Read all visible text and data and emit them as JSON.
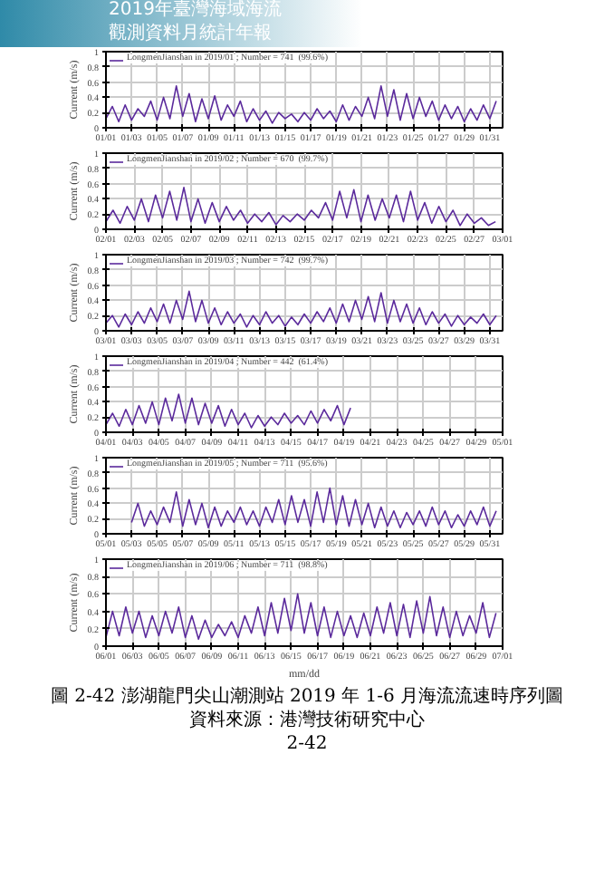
{
  "chart_data": [
    {
      "type": "line",
      "annotations": [
        "2019年臺灣海域海流",
        "觀測資料月統計年報"
      ],
      "ylabel": "Current (m/s)",
      "legend": "top left",
      "grid": true,
      "xlim": [
        "2019-01-01",
        "2019-02-01"
      ],
      "ylim": [
        0,
        1
      ],
      "yticks": [
        0,
        0.2,
        0.4,
        0.6,
        0.8,
        1
      ],
      "xticks": [
        {
          "value": "2019-01-01",
          "label": "01/01"
        },
        {
          "value": "2019-01-03",
          "label": "01/03"
        },
        {
          "value": "2019-01-05",
          "label": "01/05"
        },
        {
          "value": "2019-01-07",
          "label": "01/07"
        },
        {
          "value": "2019-01-09",
          "label": "01/09"
        },
        {
          "value": "2019-01-11",
          "label": "01/11"
        },
        {
          "value": "2019-01-13",
          "label": "01/13"
        },
        {
          "value": "2019-01-15",
          "label": "01/15"
        },
        {
          "value": "2019-01-17",
          "label": "01/17"
        },
        {
          "value": "2019-01-19",
          "label": "01/19"
        },
        {
          "value": "2019-01-21",
          "label": "01/21"
        },
        {
          "value": "2019-01-23",
          "label": "01/23"
        },
        {
          "value": "2019-01-25",
          "label": "01/25"
        },
        {
          "value": "2019-01-27",
          "label": "01/27"
        },
        {
          "value": "2019-01-29",
          "label": "01/29"
        },
        {
          "value": "2019-01-31",
          "label": "01/31"
        }
      ],
      "series": [
        {
          "name": "LongmenJianshan in 2019/01 ; Number = 741  (99.6%)",
          "color": "#5b2a9c",
          "x": [
            "2019-01-01T00:00",
            "2019-01-01T12:00",
            "2019-01-02T00:00",
            "2019-01-02T12:00",
            "2019-01-03T00:00",
            "2019-01-03T12:00",
            "2019-01-04T00:00",
            "2019-01-04T12:00",
            "2019-01-05T00:00",
            "2019-01-05T12:00",
            "2019-01-06T00:00",
            "2019-01-06T12:00",
            "2019-01-07T00:00",
            "2019-01-07T12:00",
            "2019-01-08T00:00",
            "2019-01-08T12:00",
            "2019-01-09T00:00",
            "2019-01-09T12:00",
            "2019-01-10T00:00",
            "2019-01-10T12:00",
            "2019-01-11T00:00",
            "2019-01-11T12:00",
            "2019-01-12T00:00",
            "2019-01-12T12:00",
            "2019-01-13T00:00",
            "2019-01-13T12:00",
            "2019-01-14T00:00",
            "2019-01-14T12:00",
            "2019-01-15T00:00",
            "2019-01-15T12:00",
            "2019-01-16T00:00",
            "2019-01-16T12:00",
            "2019-01-17T00:00",
            "2019-01-17T12:00",
            "2019-01-18T00:00",
            "2019-01-18T12:00",
            "2019-01-19T00:00",
            "2019-01-19T12:00",
            "2019-01-20T00:00",
            "2019-01-20T12:00",
            "2019-01-21T00:00",
            "2019-01-21T12:00",
            "2019-01-22T00:00",
            "2019-01-22T12:00",
            "2019-01-23T00:00",
            "2019-01-23T12:00",
            "2019-01-24T00:00",
            "2019-01-24T12:00",
            "2019-01-25T00:00",
            "2019-01-25T12:00",
            "2019-01-26T00:00",
            "2019-01-26T12:00",
            "2019-01-27T00:00",
            "2019-01-27T12:00",
            "2019-01-28T00:00",
            "2019-01-28T12:00",
            "2019-01-29T00:00",
            "2019-01-29T12:00",
            "2019-01-30T00:00",
            "2019-01-30T12:00",
            "2019-01-31T00:00",
            "2019-01-31T12:00"
          ],
          "values": [
            0.12,
            0.28,
            0.08,
            0.3,
            0.1,
            0.25,
            0.15,
            0.35,
            0.1,
            0.4,
            0.12,
            0.55,
            0.15,
            0.45,
            0.08,
            0.38,
            0.12,
            0.42,
            0.1,
            0.3,
            0.15,
            0.35,
            0.08,
            0.25,
            0.1,
            0.22,
            0.06,
            0.2,
            0.12,
            0.18,
            0.08,
            0.2,
            0.1,
            0.25,
            0.12,
            0.22,
            0.08,
            0.3,
            0.1,
            0.28,
            0.15,
            0.4,
            0.12,
            0.55,
            0.15,
            0.5,
            0.1,
            0.45,
            0.12,
            0.4,
            0.15,
            0.35,
            0.1,
            0.3,
            0.12,
            0.28,
            0.08,
            0.25,
            0.1,
            0.3,
            0.12,
            0.35
          ]
        }
      ]
    },
    {
      "type": "line",
      "ylabel": "Current (m/s)",
      "legend": "top left",
      "grid": true,
      "xlim": [
        "2019-02-01",
        "2019-03-01"
      ],
      "ylim": [
        0,
        1
      ],
      "yticks": [
        0,
        0.2,
        0.4,
        0.6,
        0.8,
        1
      ],
      "xticks": [
        {
          "value": "2019-02-01",
          "label": "02/01"
        },
        {
          "value": "2019-02-03",
          "label": "02/03"
        },
        {
          "value": "2019-02-05",
          "label": "02/05"
        },
        {
          "value": "2019-02-07",
          "label": "02/07"
        },
        {
          "value": "2019-02-09",
          "label": "02/09"
        },
        {
          "value": "2019-02-11",
          "label": "02/11"
        },
        {
          "value": "2019-02-13",
          "label": "02/13"
        },
        {
          "value": "2019-02-15",
          "label": "02/15"
        },
        {
          "value": "2019-02-17",
          "label": "02/17"
        },
        {
          "value": "2019-02-19",
          "label": "02/19"
        },
        {
          "value": "2019-02-21",
          "label": "02/21"
        },
        {
          "value": "2019-02-23",
          "label": "02/23"
        },
        {
          "value": "2019-02-25",
          "label": "02/25"
        },
        {
          "value": "2019-02-27",
          "label": "02/27"
        },
        {
          "value": "2019-03-01",
          "label": "03/01"
        }
      ],
      "series": [
        {
          "name": "LongmenJianshan in 2019/02 ; Number = 670  (99.7%)",
          "color": "#5b2a9c",
          "x": [
            "2019-02-01T00:00",
            "2019-02-01T12:00",
            "2019-02-02T00:00",
            "2019-02-02T12:00",
            "2019-02-03T00:00",
            "2019-02-03T12:00",
            "2019-02-04T00:00",
            "2019-02-04T12:00",
            "2019-02-05T00:00",
            "2019-02-05T12:00",
            "2019-02-06T00:00",
            "2019-02-06T12:00",
            "2019-02-07T00:00",
            "2019-02-07T12:00",
            "2019-02-08T00:00",
            "2019-02-08T12:00",
            "2019-02-09T00:00",
            "2019-02-09T12:00",
            "2019-02-10T00:00",
            "2019-02-10T12:00",
            "2019-02-11T00:00",
            "2019-02-11T12:00",
            "2019-02-12T00:00",
            "2019-02-12T12:00",
            "2019-02-13T00:00",
            "2019-02-13T12:00",
            "2019-02-14T00:00",
            "2019-02-14T12:00",
            "2019-02-15T00:00",
            "2019-02-15T12:00",
            "2019-02-16T00:00",
            "2019-02-16T12:00",
            "2019-02-17T00:00",
            "2019-02-17T12:00",
            "2019-02-18T00:00",
            "2019-02-18T12:00",
            "2019-02-19T00:00",
            "2019-02-19T12:00",
            "2019-02-20T00:00",
            "2019-02-20T12:00",
            "2019-02-21T00:00",
            "2019-02-21T12:00",
            "2019-02-22T00:00",
            "2019-02-22T12:00",
            "2019-02-23T00:00",
            "2019-02-23T12:00",
            "2019-02-24T00:00",
            "2019-02-24T12:00",
            "2019-02-25T00:00",
            "2019-02-25T12:00",
            "2019-02-26T00:00",
            "2019-02-26T12:00",
            "2019-02-27T00:00",
            "2019-02-27T12:00",
            "2019-02-28T00:00",
            "2019-02-28T12:00"
          ],
          "values": [
            0.1,
            0.25,
            0.08,
            0.3,
            0.12,
            0.4,
            0.1,
            0.45,
            0.15,
            0.5,
            0.12,
            0.55,
            0.1,
            0.4,
            0.08,
            0.35,
            0.1,
            0.3,
            0.12,
            0.25,
            0.08,
            0.2,
            0.1,
            0.22,
            0.06,
            0.18,
            0.1,
            0.2,
            0.12,
            0.25,
            0.15,
            0.35,
            0.12,
            0.5,
            0.15,
            0.52,
            0.1,
            0.45,
            0.12,
            0.4,
            0.15,
            0.45,
            0.1,
            0.5,
            0.12,
            0.35,
            0.08,
            0.3,
            0.1,
            0.25,
            0.05,
            0.2,
            0.08,
            0.15,
            0.05,
            0.1
          ]
        }
      ]
    },
    {
      "type": "line",
      "ylabel": "Current (m/s)",
      "legend": "top left",
      "grid": true,
      "xlim": [
        "2019-03-01",
        "2019-04-01"
      ],
      "ylim": [
        0,
        1
      ],
      "yticks": [
        0,
        0.2,
        0.4,
        0.6,
        0.8,
        1
      ],
      "xticks": [
        {
          "value": "2019-03-01",
          "label": "03/01"
        },
        {
          "value": "2019-03-03",
          "label": "03/03"
        },
        {
          "value": "2019-03-05",
          "label": "03/05"
        },
        {
          "value": "2019-03-07",
          "label": "03/07"
        },
        {
          "value": "2019-03-09",
          "label": "03/09"
        },
        {
          "value": "2019-03-11",
          "label": "03/11"
        },
        {
          "value": "2019-03-13",
          "label": "03/13"
        },
        {
          "value": "2019-03-15",
          "label": "03/15"
        },
        {
          "value": "2019-03-17",
          "label": "03/17"
        },
        {
          "value": "2019-03-19",
          "label": "03/19"
        },
        {
          "value": "2019-03-21",
          "label": "03/21"
        },
        {
          "value": "2019-03-23",
          "label": "03/23"
        },
        {
          "value": "2019-03-25",
          "label": "03/25"
        },
        {
          "value": "2019-03-27",
          "label": "03/27"
        },
        {
          "value": "2019-03-29",
          "label": "03/29"
        },
        {
          "value": "2019-03-31",
          "label": "03/31"
        }
      ],
      "series": [
        {
          "name": "LongmenJianshan in 2019/03 ; Number = 742  (99.7%)",
          "color": "#5b2a9c",
          "x": [
            "2019-03-01T00:00",
            "2019-03-01T12:00",
            "2019-03-02T00:00",
            "2019-03-02T12:00",
            "2019-03-03T00:00",
            "2019-03-03T12:00",
            "2019-03-04T00:00",
            "2019-03-04T12:00",
            "2019-03-05T00:00",
            "2019-03-05T12:00",
            "2019-03-06T00:00",
            "2019-03-06T12:00",
            "2019-03-07T00:00",
            "2019-03-07T12:00",
            "2019-03-08T00:00",
            "2019-03-08T12:00",
            "2019-03-09T00:00",
            "2019-03-09T12:00",
            "2019-03-10T00:00",
            "2019-03-10T12:00",
            "2019-03-11T00:00",
            "2019-03-11T12:00",
            "2019-03-12T00:00",
            "2019-03-12T12:00",
            "2019-03-13T00:00",
            "2019-03-13T12:00",
            "2019-03-14T00:00",
            "2019-03-14T12:00",
            "2019-03-15T00:00",
            "2019-03-15T12:00",
            "2019-03-16T00:00",
            "2019-03-16T12:00",
            "2019-03-17T00:00",
            "2019-03-17T12:00",
            "2019-03-18T00:00",
            "2019-03-18T12:00",
            "2019-03-19T00:00",
            "2019-03-19T12:00",
            "2019-03-20T00:00",
            "2019-03-20T12:00",
            "2019-03-21T00:00",
            "2019-03-21T12:00",
            "2019-03-22T00:00",
            "2019-03-22T12:00",
            "2019-03-23T00:00",
            "2019-03-23T12:00",
            "2019-03-24T00:00",
            "2019-03-24T12:00",
            "2019-03-25T00:00",
            "2019-03-25T12:00",
            "2019-03-26T00:00",
            "2019-03-26T12:00",
            "2019-03-27T00:00",
            "2019-03-27T12:00",
            "2019-03-28T00:00",
            "2019-03-28T12:00",
            "2019-03-29T00:00",
            "2019-03-29T12:00",
            "2019-03-30T00:00",
            "2019-03-30T12:00",
            "2019-03-31T00:00",
            "2019-03-31T12:00"
          ],
          "values": [
            0.1,
            0.2,
            0.05,
            0.22,
            0.08,
            0.25,
            0.1,
            0.3,
            0.12,
            0.35,
            0.1,
            0.4,
            0.15,
            0.52,
            0.12,
            0.4,
            0.1,
            0.3,
            0.08,
            0.25,
            0.1,
            0.22,
            0.05,
            0.2,
            0.08,
            0.25,
            0.1,
            0.2,
            0.06,
            0.18,
            0.08,
            0.22,
            0.1,
            0.25,
            0.12,
            0.3,
            0.1,
            0.35,
            0.12,
            0.4,
            0.15,
            0.45,
            0.12,
            0.5,
            0.1,
            0.4,
            0.12,
            0.35,
            0.1,
            0.3,
            0.08,
            0.25,
            0.1,
            0.22,
            0.06,
            0.2,
            0.08,
            0.18,
            0.1,
            0.22,
            0.08,
            0.2
          ]
        }
      ]
    },
    {
      "type": "line",
      "ylabel": "Current (m/s)",
      "legend": "top left",
      "grid": true,
      "xlim": [
        "2019-04-01",
        "2019-05-01"
      ],
      "ylim": [
        0,
        1
      ],
      "yticks": [
        0,
        0.2,
        0.4,
        0.6,
        0.8,
        1
      ],
      "xticks": [
        {
          "value": "2019-04-01",
          "label": "04/01"
        },
        {
          "value": "2019-04-03",
          "label": "04/03"
        },
        {
          "value": "2019-04-05",
          "label": "04/05"
        },
        {
          "value": "2019-04-07",
          "label": "04/07"
        },
        {
          "value": "2019-04-09",
          "label": "04/09"
        },
        {
          "value": "2019-04-11",
          "label": "04/11"
        },
        {
          "value": "2019-04-13",
          "label": "04/13"
        },
        {
          "value": "2019-04-15",
          "label": "04/15"
        },
        {
          "value": "2019-04-17",
          "label": "04/17"
        },
        {
          "value": "2019-04-19",
          "label": "04/19"
        },
        {
          "value": "2019-04-21",
          "label": "04/21"
        },
        {
          "value": "2019-04-23",
          "label": "04/23"
        },
        {
          "value": "2019-04-25",
          "label": "04/25"
        },
        {
          "value": "2019-04-27",
          "label": "04/27"
        },
        {
          "value": "2019-04-29",
          "label": "04/29"
        },
        {
          "value": "2019-05-01",
          "label": "05/01"
        }
      ],
      "series": [
        {
          "name": "LongmenJianshan in 2019/04 ; Number = 442  (61.4%)",
          "color": "#5b2a9c",
          "x": [
            "2019-04-01T00:00",
            "2019-04-01T12:00",
            "2019-04-02T00:00",
            "2019-04-02T12:00",
            "2019-04-03T00:00",
            "2019-04-03T12:00",
            "2019-04-04T00:00",
            "2019-04-04T12:00",
            "2019-04-05T00:00",
            "2019-04-05T12:00",
            "2019-04-06T00:00",
            "2019-04-06T12:00",
            "2019-04-07T00:00",
            "2019-04-07T12:00",
            "2019-04-08T00:00",
            "2019-04-08T12:00",
            "2019-04-09T00:00",
            "2019-04-09T12:00",
            "2019-04-10T00:00",
            "2019-04-10T12:00",
            "2019-04-11T00:00",
            "2019-04-11T12:00",
            "2019-04-12T00:00",
            "2019-04-12T12:00",
            "2019-04-13T00:00",
            "2019-04-13T12:00",
            "2019-04-14T00:00",
            "2019-04-14T12:00",
            "2019-04-15T00:00",
            "2019-04-15T12:00",
            "2019-04-16T00:00",
            "2019-04-16T12:00",
            "2019-04-17T00:00",
            "2019-04-17T12:00",
            "2019-04-18T00:00",
            "2019-04-18T12:00",
            "2019-04-19T00:00",
            "2019-04-19T12:00"
          ],
          "values": [
            0.1,
            0.25,
            0.08,
            0.3,
            0.1,
            0.35,
            0.12,
            0.4,
            0.1,
            0.45,
            0.15,
            0.5,
            0.12,
            0.45,
            0.1,
            0.38,
            0.12,
            0.35,
            0.08,
            0.3,
            0.1,
            0.25,
            0.06,
            0.22,
            0.08,
            0.2,
            0.1,
            0.25,
            0.12,
            0.22,
            0.1,
            0.28,
            0.12,
            0.3,
            0.15,
            0.35,
            0.1,
            0.32
          ]
        }
      ]
    },
    {
      "type": "line",
      "ylabel": "Current (m/s)",
      "legend": "top left",
      "grid": true,
      "xlim": [
        "2019-05-01",
        "2019-06-01"
      ],
      "ylim": [
        0,
        1
      ],
      "yticks": [
        0,
        0.2,
        0.4,
        0.6,
        0.8,
        1
      ],
      "xticks": [
        {
          "value": "2019-05-01",
          "label": "05/01"
        },
        {
          "value": "2019-05-03",
          "label": "05/03"
        },
        {
          "value": "2019-05-05",
          "label": "05/05"
        },
        {
          "value": "2019-05-07",
          "label": "05/07"
        },
        {
          "value": "2019-05-09",
          "label": "05/09"
        },
        {
          "value": "2019-05-11",
          "label": "05/11"
        },
        {
          "value": "2019-05-13",
          "label": "05/13"
        },
        {
          "value": "2019-05-15",
          "label": "05/15"
        },
        {
          "value": "2019-05-17",
          "label": "05/17"
        },
        {
          "value": "2019-05-19",
          "label": "05/19"
        },
        {
          "value": "2019-05-21",
          "label": "05/21"
        },
        {
          "value": "2019-05-23",
          "label": "05/23"
        },
        {
          "value": "2019-05-25",
          "label": "05/25"
        },
        {
          "value": "2019-05-27",
          "label": "05/27"
        },
        {
          "value": "2019-05-29",
          "label": "05/29"
        },
        {
          "value": "2019-05-31",
          "label": "05/31"
        }
      ],
      "series": [
        {
          "name": "LongmenJianshan in 2019/05 ; Number = 711  (95.6%)",
          "color": "#5b2a9c",
          "x": [
            "2019-05-03T00:00",
            "2019-05-03T12:00",
            "2019-05-04T00:00",
            "2019-05-04T12:00",
            "2019-05-05T00:00",
            "2019-05-05T12:00",
            "2019-05-06T00:00",
            "2019-05-06T12:00",
            "2019-05-07T00:00",
            "2019-05-07T12:00",
            "2019-05-08T00:00",
            "2019-05-08T12:00",
            "2019-05-09T00:00",
            "2019-05-09T12:00",
            "2019-05-10T00:00",
            "2019-05-10T12:00",
            "2019-05-11T00:00",
            "2019-05-11T12:00",
            "2019-05-12T00:00",
            "2019-05-12T12:00",
            "2019-05-13T00:00",
            "2019-05-13T12:00",
            "2019-05-14T00:00",
            "2019-05-14T12:00",
            "2019-05-15T00:00",
            "2019-05-15T12:00",
            "2019-05-16T00:00",
            "2019-05-16T12:00",
            "2019-05-17T00:00",
            "2019-05-17T12:00",
            "2019-05-18T00:00",
            "2019-05-18T12:00",
            "2019-05-19T00:00",
            "2019-05-19T12:00",
            "2019-05-20T00:00",
            "2019-05-20T12:00",
            "2019-05-21T00:00",
            "2019-05-21T12:00",
            "2019-05-22T00:00",
            "2019-05-22T12:00",
            "2019-05-23T00:00",
            "2019-05-23T12:00",
            "2019-05-24T00:00",
            "2019-05-24T12:00",
            "2019-05-25T00:00",
            "2019-05-25T12:00",
            "2019-05-26T00:00",
            "2019-05-26T12:00",
            "2019-05-27T00:00",
            "2019-05-27T12:00",
            "2019-05-28T00:00",
            "2019-05-28T12:00",
            "2019-05-29T00:00",
            "2019-05-29T12:00",
            "2019-05-30T00:00",
            "2019-05-30T12:00",
            "2019-05-31T00:00",
            "2019-05-31T12:00"
          ],
          "values": [
            0.15,
            0.4,
            0.1,
            0.3,
            0.12,
            0.35,
            0.15,
            0.55,
            0.1,
            0.45,
            0.12,
            0.4,
            0.08,
            0.35,
            0.1,
            0.3,
            0.15,
            0.35,
            0.12,
            0.3,
            0.1,
            0.35,
            0.15,
            0.45,
            0.12,
            0.5,
            0.15,
            0.45,
            0.1,
            0.55,
            0.15,
            0.6,
            0.12,
            0.5,
            0.1,
            0.45,
            0.12,
            0.4,
            0.08,
            0.35,
            0.1,
            0.3,
            0.08,
            0.28,
            0.12,
            0.3,
            0.1,
            0.35,
            0.12,
            0.3,
            0.08,
            0.25,
            0.1,
            0.3,
            0.12,
            0.35,
            0.1,
            0.3
          ]
        }
      ]
    },
    {
      "type": "line",
      "ylabel": "Current (m/s)",
      "xlabel": "mm/dd",
      "legend": "top left",
      "grid": true,
      "xlim": [
        "2019-06-01",
        "2019-07-01"
      ],
      "ylim": [
        0,
        1
      ],
      "yticks": [
        0,
        0.2,
        0.4,
        0.6,
        0.8,
        1
      ],
      "annotations": [
        "圖 2-42 澎湖龍門尖山潮測站 2019 年 1-6 月海流流速時序列圖",
        "資料來源：港灣技術研究中心",
        "2-42"
      ],
      "xticks": [
        {
          "value": "2019-06-01",
          "label": "06/01"
        },
        {
          "value": "2019-06-03",
          "label": "06/03"
        },
        {
          "value": "2019-06-05",
          "label": "06/05"
        },
        {
          "value": "2019-06-07",
          "label": "06/07"
        },
        {
          "value": "2019-06-09",
          "label": "06/09"
        },
        {
          "value": "2019-06-11",
          "label": "06/11"
        },
        {
          "value": "2019-06-13",
          "label": "06/13"
        },
        {
          "value": "2019-06-15",
          "label": "06/15"
        },
        {
          "value": "2019-06-17",
          "label": "06/17"
        },
        {
          "value": "2019-06-19",
          "label": "06/19"
        },
        {
          "value": "2019-06-21",
          "label": "06/21"
        },
        {
          "value": "2019-06-23",
          "label": "06/23"
        },
        {
          "value": "2019-06-25",
          "label": "06/25"
        },
        {
          "value": "2019-06-27",
          "label": "06/27"
        },
        {
          "value": "2019-06-29",
          "label": "06/29"
        },
        {
          "value": "2019-07-01",
          "label": "07/01"
        }
      ],
      "series": [
        {
          "name": "LongmenJianshan in 2019/06 ; Number = 711  (98.8%)",
          "color": "#5b2a9c",
          "x": [
            "2019-06-01T00:00",
            "2019-06-01T12:00",
            "2019-06-02T00:00",
            "2019-06-02T12:00",
            "2019-06-03T00:00",
            "2019-06-03T12:00",
            "2019-06-04T00:00",
            "2019-06-04T12:00",
            "2019-06-05T00:00",
            "2019-06-05T12:00",
            "2019-06-06T00:00",
            "2019-06-06T12:00",
            "2019-06-07T00:00",
            "2019-06-07T12:00",
            "2019-06-08T00:00",
            "2019-06-08T12:00",
            "2019-06-09T00:00",
            "2019-06-09T12:00",
            "2019-06-10T00:00",
            "2019-06-10T12:00",
            "2019-06-11T00:00",
            "2019-06-11T12:00",
            "2019-06-12T00:00",
            "2019-06-12T12:00",
            "2019-06-13T00:00",
            "2019-06-13T12:00",
            "2019-06-14T00:00",
            "2019-06-14T12:00",
            "2019-06-15T00:00",
            "2019-06-15T12:00",
            "2019-06-16T00:00",
            "2019-06-16T12:00",
            "2019-06-17T00:00",
            "2019-06-17T12:00",
            "2019-06-18T00:00",
            "2019-06-18T12:00",
            "2019-06-19T00:00",
            "2019-06-19T12:00",
            "2019-06-20T00:00",
            "2019-06-20T12:00",
            "2019-06-21T00:00",
            "2019-06-21T12:00",
            "2019-06-22T00:00",
            "2019-06-22T12:00",
            "2019-06-23T00:00",
            "2019-06-23T12:00",
            "2019-06-24T00:00",
            "2019-06-24T12:00",
            "2019-06-25T00:00",
            "2019-06-25T12:00",
            "2019-06-26T00:00",
            "2019-06-26T12:00",
            "2019-06-27T00:00",
            "2019-06-27T12:00",
            "2019-06-28T00:00",
            "2019-06-28T12:00",
            "2019-06-29T00:00",
            "2019-06-29T12:00",
            "2019-06-30T00:00",
            "2019-06-30T12:00"
          ],
          "values": [
            0.1,
            0.4,
            0.12,
            0.45,
            0.15,
            0.4,
            0.1,
            0.35,
            0.12,
            0.4,
            0.15,
            0.45,
            0.1,
            0.35,
            0.08,
            0.3,
            0.1,
            0.25,
            0.12,
            0.28,
            0.1,
            0.35,
            0.15,
            0.45,
            0.12,
            0.5,
            0.15,
            0.55,
            0.18,
            0.6,
            0.15,
            0.5,
            0.12,
            0.45,
            0.1,
            0.4,
            0.12,
            0.35,
            0.1,
            0.38,
            0.12,
            0.45,
            0.15,
            0.5,
            0.12,
            0.48,
            0.1,
            0.52,
            0.15,
            0.57,
            0.12,
            0.45,
            0.1,
            0.4,
            0.12,
            0.35,
            0.15,
            0.5,
            0.1,
            0.38
          ]
        }
      ]
    }
  ]
}
